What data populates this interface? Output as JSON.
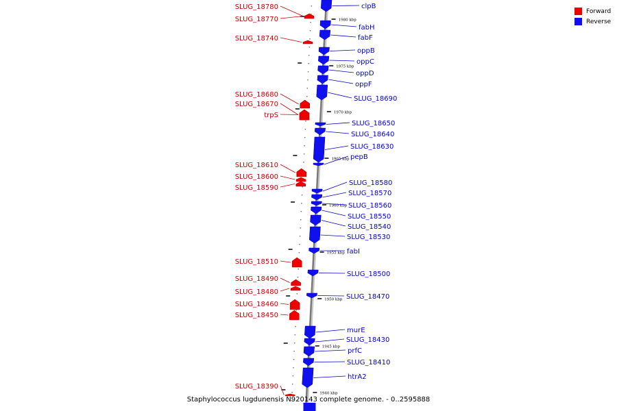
{
  "legend": {
    "items": [
      {
        "label": "Forward",
        "color": "#ee0000"
      },
      {
        "label": "Reverse",
        "color": "#1010ee"
      }
    ]
  },
  "footer": {
    "caption": "Staphylococcus lugdunensis N920143 complete genome. - 0..2595888"
  },
  "colors": {
    "forward": "#ee0000",
    "reverse": "#1010ee",
    "forward_label": "#cc0000",
    "reverse_label": "#0000cc"
  },
  "kbp_labels": [
    "1980 kbp",
    "1975 kbp",
    "1970 kbp",
    "1965 kbp",
    "1960 kbp",
    "1955 kbp",
    "1950 kbp",
    "1945 kbp",
    "1940 kbp"
  ],
  "forward_genes": [
    "SLUG_18780",
    "SLUG_18770",
    "SLUG_18740",
    "SLUG_18680",
    "SLUG_18670",
    "trpS",
    "SLUG_18610",
    "SLUG_18600",
    "SLUG_18590",
    "SLUG_18510",
    "SLUG_18490",
    "SLUG_18480",
    "SLUG_18460",
    "SLUG_18450",
    "SLUG_18390"
  ],
  "reverse_genes": [
    "clpB",
    "fabH",
    "fabF",
    "oppB",
    "oppC",
    "oppD",
    "oppF",
    "SLUG_18690",
    "SLUG_18650",
    "SLUG_18640",
    "SLUG_18630",
    "pepB",
    "SLUG_18580",
    "SLUG_18570",
    "SLUG_18560",
    "SLUG_18550",
    "SLUG_18540",
    "SLUG_18530",
    "fabI",
    "SLUG_18500",
    "SLUG_18470",
    "murE",
    "SLUG_18430",
    "prfC",
    "SLUG_18410",
    "htrA2"
  ]
}
